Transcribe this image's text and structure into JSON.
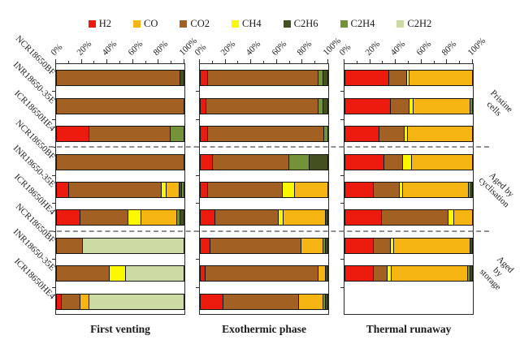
{
  "chart_data": {
    "type": "bar",
    "orientation": "horizontal-stacked",
    "unit": "%",
    "x_range": [
      0,
      100
    ],
    "x_major_ticks": [
      0,
      20,
      40,
      60,
      80,
      100
    ],
    "x_tick_labels": [
      "0%",
      "20%",
      "40%",
      "60%",
      "80%",
      "100%"
    ],
    "x_minor_step": 10,
    "grid": false,
    "legend_position": "top",
    "legend_entries": [
      "H2",
      "CO",
      "CO2",
      "CH4",
      "C2H6",
      "C2H4",
      "C2H2"
    ],
    "colors": {
      "H2": "#ec1b0d",
      "CO": "#f6b513",
      "CO2": "#a26122",
      "CH4": "#fcf800",
      "C2H6": "#44501f",
      "C2H4": "#74923a",
      "C2H2": "#ccdba4"
    },
    "row_labels": [
      "NCR18650BF",
      "INR18650-35E",
      "ICR18650HE4",
      "NCR18650BF",
      "INR18650-35E",
      "ICR18650HE4",
      "NCR18650BF",
      "INR18650-35E",
      "ICR18650HE4"
    ],
    "groups": [
      "Pristine cells",
      "Aged by\ncyclisation",
      "Aged by\nstorage"
    ],
    "panels": [
      {
        "title": "First venting",
        "bars": [
          {
            "cell": "NCR18650BF",
            "group": "Pristine cells",
            "segments": [
              [
                "CO2",
                97
              ],
              [
                "C2H6",
                3
              ]
            ]
          },
          {
            "cell": "INR18650-35E",
            "group": "Pristine cells",
            "segments": [
              [
                "CO2",
                100
              ]
            ]
          },
          {
            "cell": "ICR18650HE4",
            "group": "Pristine cells",
            "segments": [
              [
                "H2",
                25
              ],
              [
                "CO2",
                64
              ],
              [
                "C2H4",
                11
              ]
            ]
          },
          {
            "cell": "NCR18650BF",
            "group": "Aged by cyclisation",
            "segments": [
              [
                "CO2",
                100
              ]
            ]
          },
          {
            "cell": "INR18650-35E",
            "group": "Aged by cyclisation",
            "segments": [
              [
                "H2",
                9
              ],
              [
                "CO2",
                73
              ],
              [
                "CH4",
                4
              ],
              [
                "CO",
                10
              ],
              [
                "C2H6",
                2
              ],
              [
                "C2H4",
                2
              ]
            ]
          },
          {
            "cell": "ICR18650HE4",
            "group": "Aged by cyclisation",
            "segments": [
              [
                "H2",
                18
              ],
              [
                "CO2",
                38
              ],
              [
                "CH4",
                10
              ],
              [
                "CO",
                28
              ],
              [
                "C2H4",
                3
              ],
              [
                "C2H6",
                3
              ]
            ]
          },
          {
            "cell": "NCR18650BF",
            "group": "Aged by storage",
            "segments": [
              [
                "CO2",
                20
              ],
              [
                "C2H2",
                80
              ]
            ]
          },
          {
            "cell": "INR18650-35E",
            "group": "Aged by storage",
            "segments": [
              [
                "CO2",
                41
              ],
              [
                "CH4",
                13
              ],
              [
                "C2H2",
                46
              ]
            ]
          },
          {
            "cell": "ICR18650HE4",
            "group": "Aged by storage",
            "segments": [
              [
                "H2",
                3
              ],
              [
                "CO2",
                15
              ],
              [
                "CO",
                7
              ],
              [
                "C2H2",
                75
              ]
            ]
          }
        ]
      },
      {
        "title": "Exothermic phase",
        "bars": [
          {
            "cell": "NCR18650BF",
            "group": "Pristine cells",
            "segments": [
              [
                "H2",
                5
              ],
              [
                "CO2",
                87
              ],
              [
                "C2H4",
                4
              ],
              [
                "C2H6",
                4
              ]
            ]
          },
          {
            "cell": "INR18650-35E",
            "group": "Pristine cells",
            "segments": [
              [
                "H2",
                4
              ],
              [
                "CO2",
                88
              ],
              [
                "C2H4",
                4
              ],
              [
                "C2H6",
                4
              ]
            ]
          },
          {
            "cell": "ICR18650HE4",
            "group": "Pristine cells",
            "segments": [
              [
                "H2",
                5
              ],
              [
                "CO2",
                92
              ],
              [
                "C2H4",
                3
              ]
            ]
          },
          {
            "cell": "NCR18650BF",
            "group": "Aged by cyclisation",
            "segments": [
              [
                "H2",
                9
              ],
              [
                "CO2",
                60
              ],
              [
                "C2H4",
                16
              ],
              [
                "C2H6",
                15
              ]
            ]
          },
          {
            "cell": "INR18650-35E",
            "group": "Aged by cyclisation",
            "segments": [
              [
                "H2",
                5
              ],
              [
                "CO2",
                59
              ],
              [
                "CH4",
                10
              ],
              [
                "CO",
                26
              ]
            ]
          },
          {
            "cell": "ICR18650HE4",
            "group": "Aged by cyclisation",
            "segments": [
              [
                "H2",
                11
              ],
              [
                "CO2",
                50
              ],
              [
                "CH4",
                4
              ],
              [
                "CO",
                33
              ],
              [
                "C2H6",
                2
              ]
            ]
          },
          {
            "cell": "NCR18650BF",
            "group": "Aged by storage",
            "segments": [
              [
                "H2",
                7
              ],
              [
                "CO2",
                72
              ],
              [
                "CO",
                17
              ],
              [
                "C2H4",
                2
              ],
              [
                "C2H6",
                2
              ]
            ]
          },
          {
            "cell": "INR18650-35E",
            "group": "Aged by storage",
            "segments": [
              [
                "H2",
                3
              ],
              [
                "CO2",
                89
              ],
              [
                "CO",
                6
              ],
              [
                "C2H6",
                2
              ]
            ]
          },
          {
            "cell": "ICR18650HE4",
            "group": "Aged by storage",
            "segments": [
              [
                "H2",
                17
              ],
              [
                "CO2",
                60
              ],
              [
                "CO",
                19
              ],
              [
                "C2H4",
                2
              ],
              [
                "C2H6",
                2
              ]
            ]
          }
        ]
      },
      {
        "title": "Thermal runaway",
        "bars": [
          {
            "cell": "NCR18650BF",
            "group": "Pristine cells",
            "segments": [
              [
                "H2",
                34
              ],
              [
                "CO2",
                14
              ],
              [
                "CH4",
                2
              ],
              [
                "CO",
                50
              ]
            ]
          },
          {
            "cell": "INR18650-35E",
            "group": "Pristine cells",
            "segments": [
              [
                "H2",
                35
              ],
              [
                "CO2",
                15
              ],
              [
                "CH4",
                3
              ],
              [
                "CO",
                45
              ],
              [
                "C2H4",
                2
              ]
            ]
          },
          {
            "cell": "ICR18650HE4",
            "group": "Pristine cells",
            "segments": [
              [
                "H2",
                26
              ],
              [
                "CO2",
                20
              ],
              [
                "CH4",
                3
              ],
              [
                "CO",
                51
              ]
            ]
          },
          {
            "cell": "NCR18650BF",
            "group": "Aged by cyclisation",
            "segments": [
              [
                "H2",
                30
              ],
              [
                "CO2",
                15
              ],
              [
                "CH4",
                7
              ],
              [
                "CO",
                48
              ]
            ]
          },
          {
            "cell": "INR18650-35E",
            "group": "Aged by cyclisation",
            "segments": [
              [
                "H2",
                22
              ],
              [
                "CO2",
                20
              ],
              [
                "CH4",
                3
              ],
              [
                "CO",
                52
              ],
              [
                "C2H4",
                2
              ],
              [
                "C2H6",
                1
              ]
            ]
          },
          {
            "cell": "ICR18650HE4",
            "group": "Aged by cyclisation",
            "segments": [
              [
                "H2",
                28
              ],
              [
                "CO2",
                53
              ],
              [
                "CH4",
                4
              ],
              [
                "CO",
                15
              ]
            ]
          },
          {
            "cell": "NCR18650BF",
            "group": "Aged by storage",
            "segments": [
              [
                "H2",
                22
              ],
              [
                "CO2",
                13
              ],
              [
                "CH4",
                3
              ],
              [
                "CO",
                60
              ],
              [
                "C2H6",
                2
              ]
            ]
          },
          {
            "cell": "INR18650-35E",
            "group": "Aged by storage",
            "segments": [
              [
                "H2",
                22
              ],
              [
                "CO2",
                11
              ],
              [
                "CH4",
                3
              ],
              [
                "CO",
                60
              ],
              [
                "C2H4",
                2
              ],
              [
                "C2H6",
                2
              ]
            ]
          },
          {
            "cell": "ICR18650HE4",
            "group": "Aged by storage",
            "segments": []
          }
        ]
      }
    ]
  }
}
